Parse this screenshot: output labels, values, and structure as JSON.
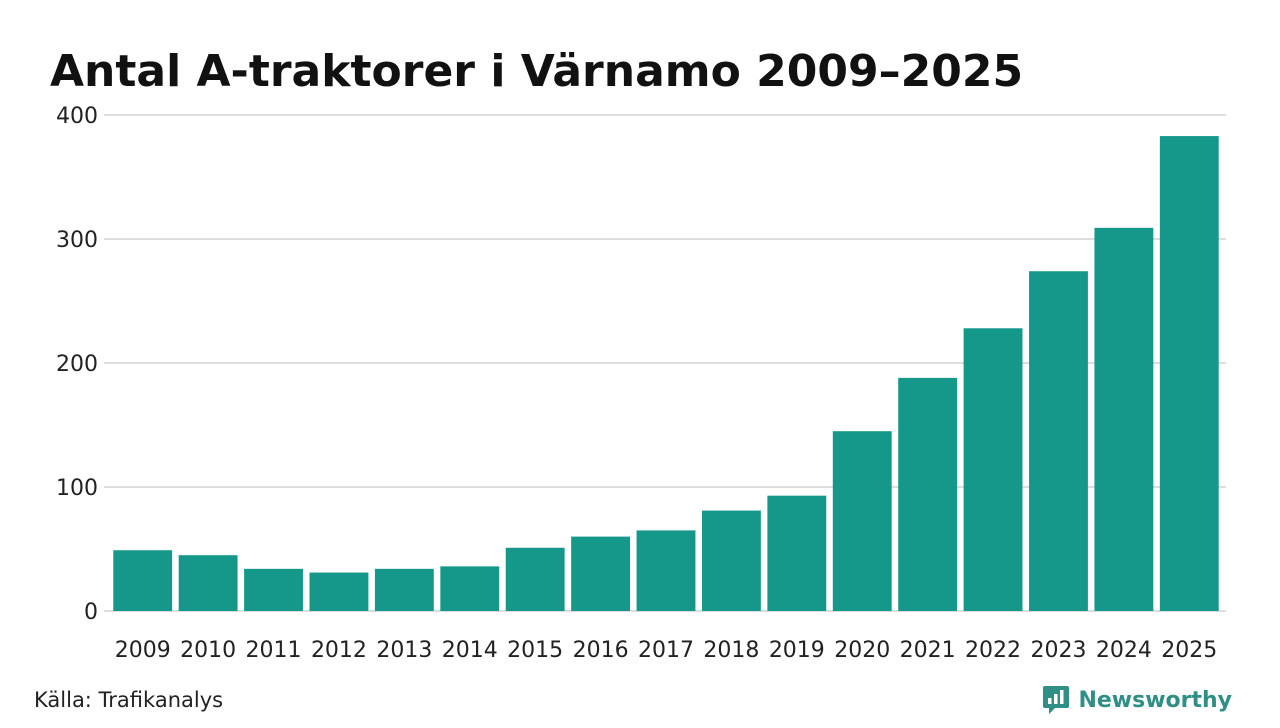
{
  "chart_data": {
    "type": "bar",
    "title": "Antal A-traktorer i Värnamo 2009–2025",
    "categories": [
      "2009",
      "2010",
      "2011",
      "2012",
      "2013",
      "2014",
      "2015",
      "2016",
      "2017",
      "2018",
      "2019",
      "2020",
      "2021",
      "2022",
      "2023",
      "2024",
      "2025"
    ],
    "values": [
      49,
      45,
      34,
      31,
      34,
      36,
      51,
      60,
      65,
      81,
      93,
      145,
      188,
      228,
      274,
      309,
      383
    ],
    "ylim": [
      0,
      400
    ],
    "yticks": [
      0,
      100,
      200,
      300,
      400
    ],
    "grid": true,
    "bar_color": "#15988a"
  },
  "footer": {
    "source": "Källa: Trafikanalys",
    "brand": "Newsworthy",
    "brand_icon": "newsworthy-logo-icon"
  }
}
